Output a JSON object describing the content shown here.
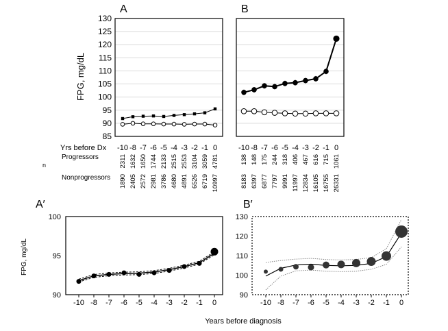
{
  "figure": {
    "y_axis_label_top": "FPG, mg/dL",
    "y_axis_label_bottom": "FPG, mg/dL",
    "years_row_label": "Yrs before Dx",
    "n_label": "n",
    "progressors_label": "Progressors",
    "nonprogressors_label": "Nonprogressors",
    "x_axis_title_bottom": "Years before diagnosis"
  },
  "chart_data": [
    {
      "panel": "A",
      "type": "line",
      "title": "A",
      "ylim": [
        85,
        130
      ],
      "yticks": [
        85,
        90,
        95,
        100,
        105,
        110,
        115,
        120,
        125,
        130
      ],
      "categories": [
        "-10",
        "-8",
        "-7",
        "-6",
        "-5",
        "-4",
        "-3",
        "-2",
        "-1",
        "0"
      ],
      "series": [
        {
          "name": "Progressors",
          "marker": "filled-square",
          "values": [
            91.8,
            92.5,
            92.7,
            92.8,
            92.6,
            93.0,
            93.3,
            93.6,
            94.0,
            95.5
          ],
          "n": [
            "2311",
            "1632",
            "1650",
            "1744",
            "2133",
            "2515",
            "2553",
            "3104",
            "3059",
            "4781"
          ]
        },
        {
          "name": "Nonprogressors",
          "marker": "open-circle",
          "values": [
            89.6,
            90.0,
            89.8,
            89.8,
            89.7,
            89.7,
            89.6,
            89.7,
            89.7,
            89.3
          ],
          "n": [
            "1890",
            "2405",
            "2572",
            "2981",
            "3786",
            "4680",
            "4891",
            "6526",
            "6719",
            "10997"
          ]
        }
      ]
    },
    {
      "panel": "B",
      "type": "line",
      "title": "B",
      "ylim": [
        85,
        130
      ],
      "categories": [
        "-10",
        "-8",
        "-7",
        "-6",
        "-5",
        "-4",
        "-3",
        "-2",
        "-1",
        "0"
      ],
      "series": [
        {
          "name": "Progressors",
          "marker": "filled-circle",
          "values": [
            101.8,
            102.8,
            104.3,
            104.0,
            105.2,
            105.5,
            106.3,
            107.0,
            109.8,
            122.3
          ],
          "n": [
            "138",
            "148",
            "175",
            "244",
            "318",
            "406",
            "467",
            "616",
            "715",
            "1061"
          ]
        },
        {
          "name": "Nonprogressors",
          "marker": "open-circle",
          "values": [
            94.6,
            94.6,
            94.2,
            94.0,
            93.8,
            93.7,
            93.7,
            93.8,
            93.8,
            93.8
          ],
          "n": [
            "8183",
            "6397",
            "6877",
            "7797",
            "9991",
            "11997",
            "12834",
            "16105",
            "16755",
            "26331"
          ]
        }
      ]
    },
    {
      "panel": "A'",
      "type": "scatter",
      "title": "A′",
      "ylim": [
        90,
        100
      ],
      "yticks": [
        90,
        95,
        100
      ],
      "xticks": [
        "-10",
        "-8",
        "-7",
        "-6",
        "-5",
        "-4",
        "-3",
        "-2",
        "-1",
        "0"
      ],
      "points": [
        91.7,
        92.4,
        92.6,
        92.8,
        92.6,
        92.8,
        93.1,
        93.6,
        94.0,
        95.5
      ],
      "fit": [
        91.8,
        92.4,
        92.6,
        92.7,
        92.75,
        92.9,
        93.2,
        93.6,
        94.1,
        95.3
      ]
    },
    {
      "panel": "B'",
      "type": "scatter",
      "title": "B′",
      "ylim": [
        90,
        130
      ],
      "yticks": [
        90,
        100,
        110,
        120,
        130
      ],
      "xticks": [
        "-10",
        "-8",
        "-7",
        "-6",
        "-5",
        "-4",
        "-3",
        "-2",
        "-1",
        "0"
      ],
      "points": [
        101.8,
        103.0,
        104.3,
        104.0,
        105.2,
        105.5,
        106.2,
        107.0,
        109.8,
        122.3
      ],
      "fit": [
        99.5,
        103.5,
        105.2,
        105.6,
        105.0,
        104.8,
        105.0,
        106.0,
        109.5,
        121.5
      ]
    }
  ]
}
